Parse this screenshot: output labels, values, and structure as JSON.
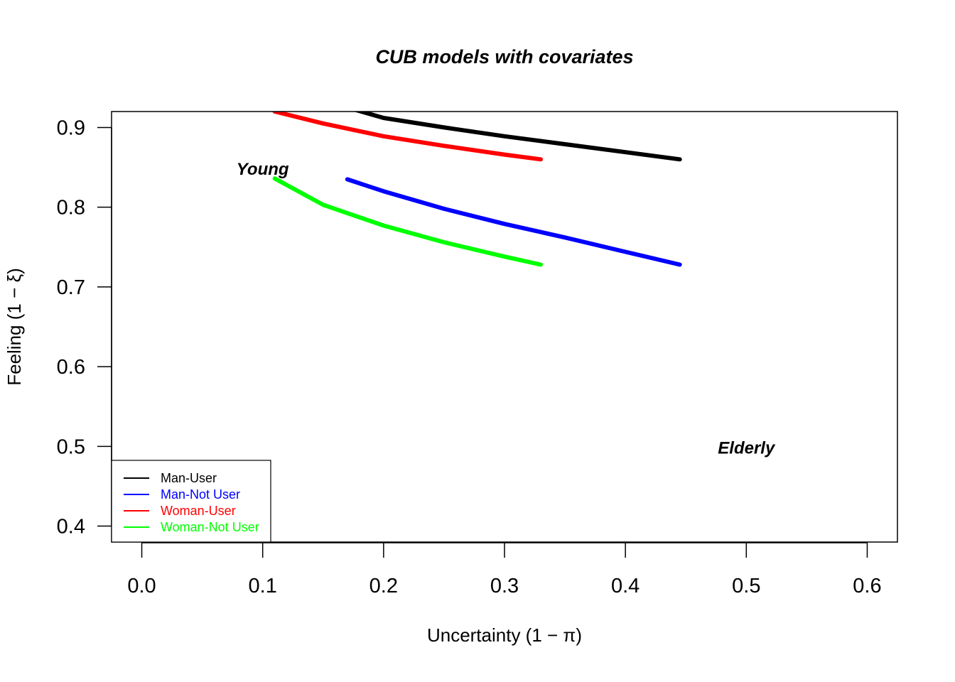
{
  "chart_data": {
    "type": "line",
    "title": "CUB models with covariates",
    "xlabel": "Uncertainty (1 − π)",
    "ylabel": "Feeling (1 − ξ)",
    "xlim": [
      -0.025,
      0.625
    ],
    "ylim": [
      0.38,
      0.92
    ],
    "x_ticks": [
      0.0,
      0.1,
      0.2,
      0.3,
      0.4,
      0.5,
      0.6
    ],
    "y_ticks": [
      0.4,
      0.5,
      0.6,
      0.7,
      0.8,
      0.9
    ],
    "x_tick_labels": [
      "0.0",
      "0.1",
      "0.2",
      "0.3",
      "0.4",
      "0.5",
      "0.6"
    ],
    "y_tick_labels": [
      "0.4",
      "0.5",
      "0.6",
      "0.7",
      "0.8",
      "0.9"
    ],
    "grid": false,
    "legend_position": "bottom-left",
    "annotations": [
      {
        "text": "Young",
        "x": 0.1,
        "y": 0.848
      },
      {
        "text": "Elderly",
        "x": 0.5,
        "y": 0.498
      }
    ],
    "series": [
      {
        "name": "Man-User",
        "color": "#000000",
        "x": [
          0.17,
          0.2,
          0.25,
          0.3,
          0.35,
          0.4,
          0.445
        ],
        "y": [
          0.925,
          0.912,
          0.9,
          0.889,
          0.879,
          0.869,
          0.86
        ]
      },
      {
        "name": "Man-Not User",
        "color": "#0000ff",
        "x": [
          0.17,
          0.2,
          0.25,
          0.3,
          0.35,
          0.4,
          0.445
        ],
        "y": [
          0.835,
          0.82,
          0.798,
          0.779,
          0.762,
          0.744,
          0.728
        ]
      },
      {
        "name": "Woman-User",
        "color": "#ff0000",
        "x": [
          0.11,
          0.15,
          0.2,
          0.25,
          0.3,
          0.33
        ],
        "y": [
          0.92,
          0.905,
          0.889,
          0.877,
          0.866,
          0.86
        ]
      },
      {
        "name": "Woman-Not User",
        "color": "#00ff00",
        "x": [
          0.11,
          0.15,
          0.2,
          0.25,
          0.3,
          0.33
        ],
        "y": [
          0.836,
          0.803,
          0.777,
          0.756,
          0.738,
          0.728
        ]
      }
    ]
  }
}
